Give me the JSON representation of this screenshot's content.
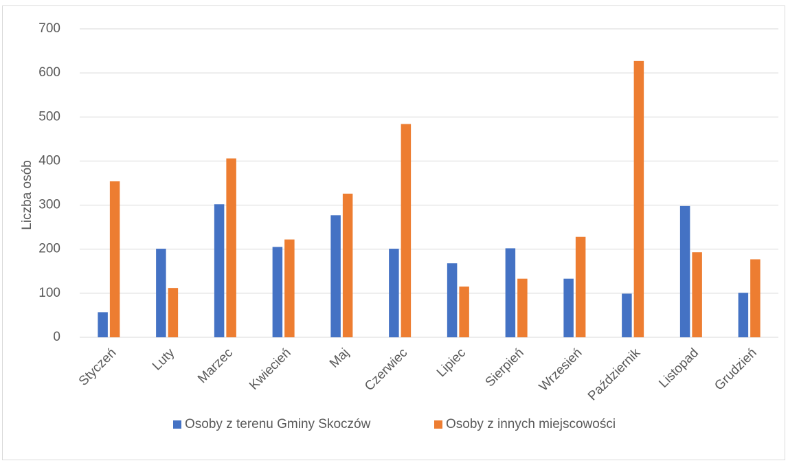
{
  "chart_data": {
    "type": "bar",
    "title": "",
    "xlabel": "",
    "ylabel": "Liczba osób",
    "ylim": [
      0,
      700
    ],
    "yticks": [
      0,
      100,
      200,
      300,
      400,
      500,
      600,
      700
    ],
    "grid": true,
    "legend_position": "bottom",
    "categories": [
      "Styczeń",
      "Luty",
      "Marzec",
      "Kwiecień",
      "Maj",
      "Czerwiec",
      "Lipiec",
      "Sierpień",
      "Wrzesień",
      "Październik",
      "Listopad",
      "Grudzień"
    ],
    "series": [
      {
        "name": "Osoby z terenu Gminy Skoczów",
        "color": "#4472c4",
        "values": [
          57,
          201,
          302,
          205,
          277,
          201,
          168,
          202,
          133,
          99,
          298,
          101
        ]
      },
      {
        "name": "Osoby z innych miejscowości",
        "color": "#ed7d31",
        "values": [
          354,
          112,
          406,
          222,
          326,
          484,
          115,
          133,
          228,
          627,
          193,
          177
        ]
      }
    ]
  }
}
